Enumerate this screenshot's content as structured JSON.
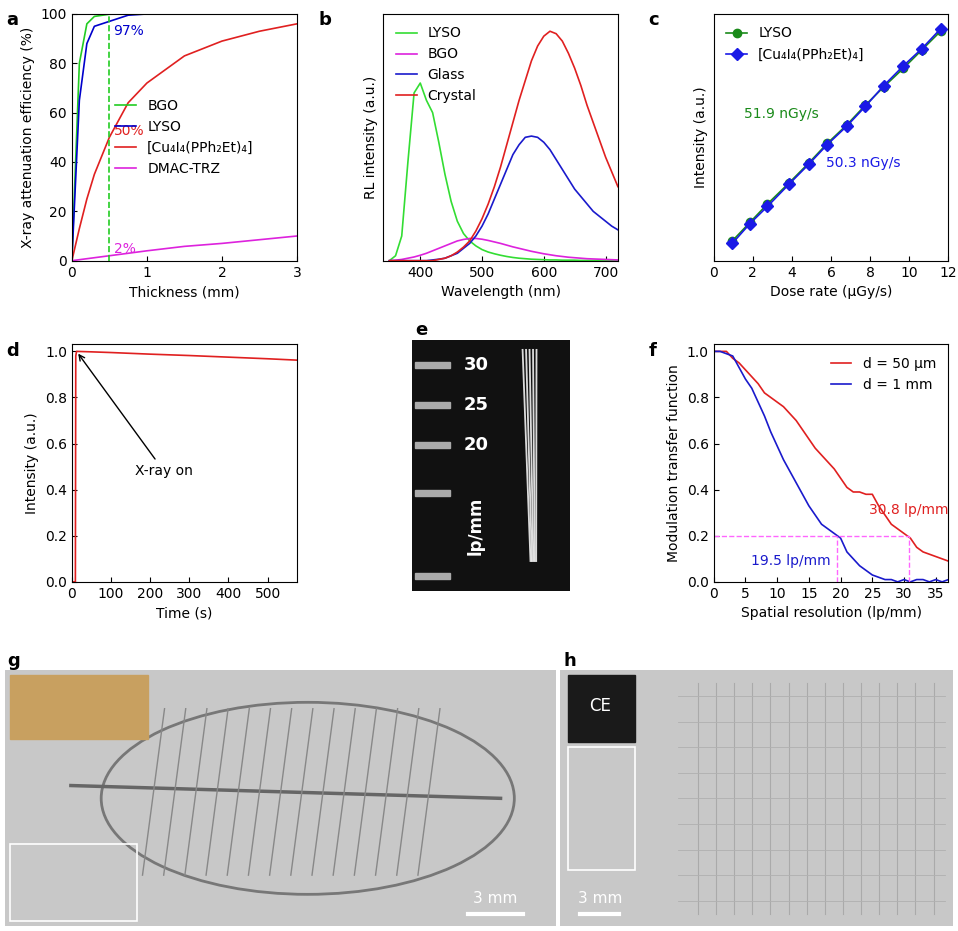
{
  "chart_data": [
    {
      "panel": "a",
      "type": "line",
      "x_label": "Thickness (mm)",
      "y_label": "X-ray attenuation efficiency (%)",
      "x": [
        0,
        0.1,
        0.2,
        0.3,
        0.5,
        0.75,
        1,
        1.5,
        2,
        2.5,
        3
      ],
      "series": [
        {
          "name": "BGO",
          "color": "#22cc22",
          "values": [
            0,
            80,
            96,
            99,
            99.9,
            100,
            100,
            100,
            100,
            100,
            100
          ]
        },
        {
          "name": "LYSO",
          "color": "#0000cc",
          "values": [
            0,
            65,
            88,
            95,
            97,
            99.5,
            100,
            100,
            100,
            100,
            100
          ]
        },
        {
          "name": "[Cu₄I₄(PPh₂Et)₄]",
          "color": "#e02020",
          "values": [
            0,
            13,
            25,
            35,
            50,
            64,
            72,
            83,
            89,
            93,
            96
          ]
        },
        {
          "name": "DMAC-TRZ",
          "color": "#dd22dd",
          "values": [
            0,
            0.4,
            0.8,
            1.2,
            2,
            3,
            4,
            5.8,
            7,
            8.5,
            10
          ]
        }
      ],
      "reference_x": 0.5,
      "annotations": [
        {
          "text": "97%",
          "x": 0.5,
          "y": 97,
          "color": "#0000cc"
        },
        {
          "text": "50%",
          "x": 0.5,
          "y": 50,
          "color": "#e02020"
        },
        {
          "text": "2%",
          "x": 0.5,
          "y": 2,
          "color": "#dd22dd"
        }
      ],
      "xlim": [
        0,
        3
      ],
      "xticks": [
        0,
        1,
        2,
        3
      ],
      "ylim": [
        0,
        100
      ],
      "yticks": [
        0,
        20,
        40,
        60,
        80,
        100
      ],
      "legend": "center"
    },
    {
      "panel": "b",
      "type": "line",
      "x_label": "Wavelength (nm)",
      "y_label": "RL intensity (a.u.)",
      "x": [
        350,
        360,
        370,
        380,
        390,
        400,
        410,
        420,
        430,
        440,
        450,
        460,
        470,
        480,
        490,
        500,
        510,
        520,
        530,
        540,
        550,
        560,
        570,
        580,
        590,
        600,
        610,
        620,
        630,
        640,
        650,
        660,
        670,
        680,
        690,
        700,
        710,
        720
      ],
      "series": [
        {
          "name": "LYSO",
          "color": "#33dd33",
          "values": [
            0,
            2,
            10,
            40,
            68,
            72,
            65,
            60,
            48,
            35,
            24,
            16,
            11,
            8,
            6,
            4.5,
            3.5,
            2.8,
            2.2,
            1.7,
            1.3,
            1,
            0.8,
            0.6,
            0.5,
            0.4,
            0.3,
            0.3,
            0.2,
            0.2,
            0.2,
            0.1,
            0.1,
            0.1,
            0.1,
            0.1,
            0.1,
            0.1
          ]
        },
        {
          "name": "BGO",
          "color": "#dd22dd",
          "values": [
            0,
            0.2,
            0.5,
            1,
            1.5,
            2.2,
            3,
            4,
            5,
            6,
            7,
            8,
            8.6,
            9,
            9,
            8.7,
            8.2,
            7.6,
            7,
            6.3,
            5.6,
            5,
            4.4,
            3.8,
            3.3,
            2.8,
            2.4,
            2,
            1.7,
            1.4,
            1.2,
            1,
            0.8,
            0.7,
            0.6,
            0.5,
            0.4,
            0.3
          ]
        },
        {
          "name": "Glass",
          "color": "#1a1acc",
          "values": [
            0,
            0,
            0,
            0,
            0,
            0,
            0,
            0.3,
            0.6,
            1,
            2,
            3,
            5,
            7,
            10,
            14,
            19,
            25,
            31,
            37,
            43,
            47,
            50,
            50.5,
            50,
            48,
            45,
            41,
            37,
            33,
            29,
            26,
            23,
            20,
            18,
            16,
            14,
            12.5
          ]
        },
        {
          "name": "Crystal",
          "color": "#e02020",
          "values": [
            0,
            0,
            0,
            0,
            0,
            0,
            0,
            0,
            0.5,
            1,
            2,
            3.5,
            5.5,
            8,
            12,
            17,
            23,
            30,
            38,
            47,
            56,
            65,
            73,
            81,
            87,
            91,
            93,
            92,
            89,
            84,
            78,
            71,
            63,
            56,
            49,
            42,
            36,
            30
          ]
        }
      ],
      "xlim": [
        340,
        720
      ],
      "xticks": [
        400,
        500,
        600,
        700
      ],
      "ylim": [
        0,
        100
      ],
      "yticks": [],
      "tick_labels": "x",
      "legend": "upper left"
    },
    {
      "panel": "c",
      "type": "line",
      "x_label": "Dose rate (μGy/s)",
      "y_label": "Intensity (a.u.)",
      "x": [
        0.95,
        1.85,
        2.75,
        3.85,
        4.85,
        5.8,
        6.8,
        7.75,
        8.7,
        9.7,
        10.65,
        11.6
      ],
      "series": [
        {
          "name": "LYSO",
          "color": "#1a8a1a",
          "marker": "circle",
          "line_style": "solid",
          "values": [
            8,
            15.5,
            23,
            31.5,
            39.5,
            47.5,
            55,
            63,
            70.5,
            78,
            85.5,
            93
          ]
        },
        {
          "name": "[Cu₄I₄(PPh₂Et)₄]",
          "color": "#1a1ae6",
          "marker": "diamond",
          "line_style": "solid",
          "values": [
            7,
            15,
            22,
            31,
            39,
            47,
            54.5,
            62.5,
            71,
            79,
            86,
            94
          ]
        }
      ],
      "annotations": [
        {
          "text": "51.9 nGy/s",
          "color": "#1a8a1a"
        },
        {
          "text": "50.3 nGy/s",
          "color": "#1a1ae6"
        }
      ],
      "xlim": [
        0,
        12
      ],
      "xticks": [
        0,
        2,
        4,
        6,
        8,
        10,
        12
      ],
      "ylim": [
        0,
        100
      ],
      "yticks": [],
      "tick_labels": "x",
      "legend": "upper left"
    },
    {
      "panel": "d",
      "type": "line",
      "x_label": "Time (s)",
      "y_label": "Intensity (a.u.)",
      "x": [
        0,
        9,
        10,
        12,
        50,
        100,
        200,
        300,
        400,
        500,
        575
      ],
      "series": [
        {
          "name": "Intensity",
          "color": "#e02020",
          "values": [
            0,
            0,
            0.98,
            1.0,
            0.998,
            0.995,
            0.988,
            0.982,
            0.975,
            0.968,
            0.962
          ]
        }
      ],
      "annotations": [
        {
          "text": "X-ray on",
          "x": 12,
          "y": 1.0,
          "color": "#000000"
        }
      ],
      "xlim": [
        0,
        575
      ],
      "xticks": [
        0,
        100,
        200,
        300,
        400,
        500
      ],
      "ylim": [
        0,
        1.03
      ],
      "yticks": [
        0.0,
        0.2,
        0.4,
        0.6,
        0.8,
        1.0
      ]
    },
    {
      "panel": "e",
      "type": "image",
      "labels": [
        "30",
        "25",
        "20",
        "lp/mm"
      ]
    },
    {
      "panel": "f",
      "type": "line",
      "x_label": "Spatial resolution (lp/mm)",
      "y_label": "Modulation transfer function",
      "x": [
        0,
        1,
        2,
        3,
        4,
        5,
        6,
        7,
        8,
        9,
        10,
        11,
        12,
        13,
        14,
        15,
        16,
        17,
        18,
        19,
        20,
        21,
        22,
        23,
        24,
        25,
        26,
        27,
        28,
        29,
        30,
        31,
        32,
        33,
        34,
        35,
        36,
        37
      ],
      "series": [
        {
          "name": "d = 50 μm",
          "color": "#e02020",
          "values": [
            1.0,
            1.0,
            1.0,
            0.97,
            0.95,
            0.92,
            0.89,
            0.86,
            0.82,
            0.8,
            0.78,
            0.76,
            0.73,
            0.7,
            0.66,
            0.62,
            0.58,
            0.55,
            0.52,
            0.49,
            0.45,
            0.41,
            0.39,
            0.39,
            0.38,
            0.38,
            0.33,
            0.29,
            0.25,
            0.23,
            0.21,
            0.19,
            0.15,
            0.13,
            0.12,
            0.11,
            0.1,
            0.09
          ]
        },
        {
          "name": "d = 1 mm",
          "color": "#1a1acc",
          "values": [
            1.0,
            1.0,
            0.99,
            0.98,
            0.93,
            0.88,
            0.84,
            0.78,
            0.72,
            0.65,
            0.59,
            0.53,
            0.48,
            0.43,
            0.38,
            0.33,
            0.29,
            0.25,
            0.23,
            0.21,
            0.19,
            0.13,
            0.1,
            0.07,
            0.05,
            0.03,
            0.02,
            0.01,
            0.01,
            0.0,
            0.01,
            0.0,
            0.01,
            0.01,
            0.0,
            0.01,
            0.0,
            0.01
          ]
        }
      ],
      "threshold": 0.2,
      "cutoffs": [
        {
          "x": 19.5,
          "label": "19.5 lp/mm",
          "color": "#1a1acc"
        },
        {
          "x": 30.8,
          "label": "30.8 lp/mm",
          "color": "#e02020"
        }
      ],
      "xlim": [
        0,
        37
      ],
      "xticks": [
        0,
        5,
        10,
        15,
        20,
        25,
        30,
        35
      ],
      "ylim": [
        0,
        1.03
      ],
      "yticks": [
        0.0,
        0.2,
        0.4,
        0.6,
        0.8,
        1.0
      ],
      "legend": "upper right"
    },
    {
      "panel": "g",
      "type": "image",
      "scale_bar": "3 mm"
    },
    {
      "panel": "h",
      "type": "image",
      "scale_bar": "3 mm",
      "inset_text": "CE"
    }
  ]
}
